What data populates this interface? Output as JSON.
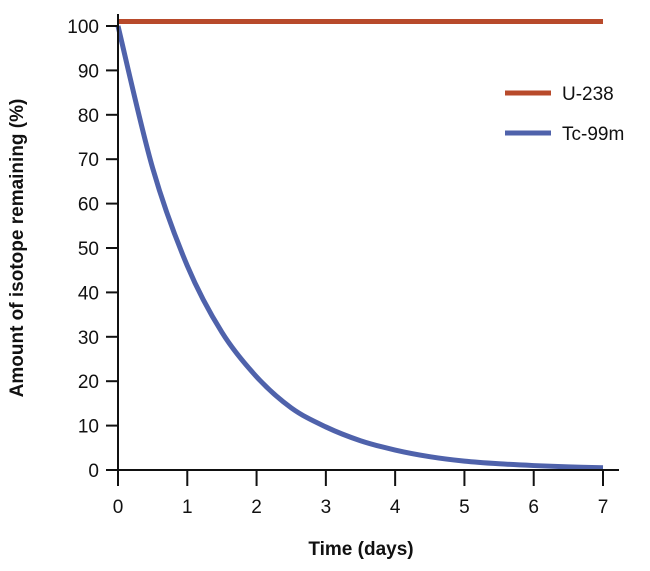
{
  "chart_data": {
    "type": "line",
    "title": "",
    "xlabel": "Time (days)",
    "ylabel": "Amount of isotope remaining (%)",
    "xlim": [
      0,
      7
    ],
    "ylim": [
      0,
      100
    ],
    "x_ticks": [
      "0",
      "1",
      "2",
      "3",
      "4",
      "5",
      "6",
      "7"
    ],
    "y_ticks": [
      "0",
      "10",
      "20",
      "30",
      "40",
      "50",
      "60",
      "70",
      "80",
      "90",
      "100"
    ],
    "grid": false,
    "legend_position": "top-right",
    "series": [
      {
        "name": "U-238",
        "color": "#b84a2b",
        "x": [
          0,
          7
        ],
        "y": [
          101,
          101
        ]
      },
      {
        "name": "Tc-99m",
        "color": "#4f62ab",
        "x": [
          0,
          0.5,
          1,
          1.5,
          2,
          2.5,
          3,
          3.5,
          4,
          4.5,
          5,
          5.5,
          6,
          6.5,
          7
        ],
        "y": [
          100,
          68,
          46,
          31,
          21,
          14,
          9.7,
          6.6,
          4.5,
          3,
          2,
          1.4,
          1,
          0.7,
          0.5
        ]
      }
    ]
  }
}
